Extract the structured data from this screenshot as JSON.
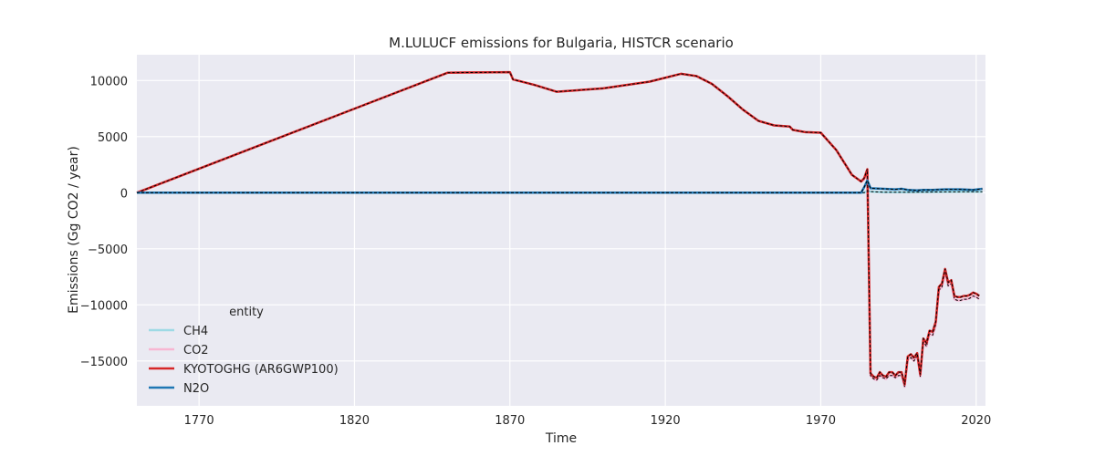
{
  "chart_data": {
    "type": "line",
    "title": "M.LULUCF emissions for Bulgaria, HISTCR scenario",
    "xlabel": "Time",
    "ylabel": "Emissions (Gg CO2 / year)",
    "xlim": [
      1750,
      2023
    ],
    "ylim": [
      -19000,
      12300
    ],
    "x_ticks": [
      1770,
      1820,
      1870,
      1920,
      1970,
      2020
    ],
    "y_ticks": [
      -15000,
      -10000,
      -5000,
      0,
      5000,
      10000
    ],
    "x_tick_labels": [
      "1770",
      "1820",
      "1870",
      "1920",
      "1970",
      "2020"
    ],
    "y_tick_labels": [
      "−15000",
      "−10000",
      "−5000",
      "0",
      "5000",
      "10000"
    ],
    "grid": true,
    "legend_placement": "lower-left",
    "legend_title": "entity",
    "background": "#eaeaf2",
    "series": [
      {
        "name": "CH4",
        "color": "#9edae5",
        "width": 2.5,
        "points": [
          [
            1750,
            0
          ],
          [
            1800,
            0
          ],
          [
            1850,
            0
          ],
          [
            1900,
            0
          ],
          [
            1950,
            0
          ],
          [
            1984,
            0
          ],
          [
            1985,
            150
          ],
          [
            1986,
            100
          ],
          [
            1990,
            50
          ],
          [
            1995,
            40
          ],
          [
            2000,
            50
          ],
          [
            2005,
            60
          ],
          [
            2010,
            70
          ],
          [
            2015,
            80
          ],
          [
            2022,
            90
          ]
        ]
      },
      {
        "name": "CO2",
        "color": "#f7b6d2",
        "width": 2.5,
        "points": [
          [
            1750,
            0
          ],
          [
            1850,
            10700
          ],
          [
            1870,
            10750
          ],
          [
            1871,
            10100
          ],
          [
            1878,
            9600
          ],
          [
            1885,
            9000
          ],
          [
            1900,
            9300
          ],
          [
            1915,
            9900
          ],
          [
            1925,
            10600
          ],
          [
            1930,
            10400
          ],
          [
            1935,
            9700
          ],
          [
            1940,
            8600
          ],
          [
            1945,
            7400
          ],
          [
            1950,
            6400
          ],
          [
            1955,
            6000
          ],
          [
            1960,
            5900
          ],
          [
            1961,
            5600
          ],
          [
            1965,
            5400
          ],
          [
            1970,
            5350
          ],
          [
            1975,
            3800
          ],
          [
            1980,
            1600
          ],
          [
            1983,
            1000
          ],
          [
            1984,
            1200
          ],
          [
            1985,
            2000
          ],
          [
            1986,
            -16300
          ],
          [
            1987,
            -16600
          ],
          [
            1988,
            -16700
          ],
          [
            1989,
            -16300
          ],
          [
            1990,
            -16500
          ],
          [
            1991,
            -16600
          ],
          [
            1992,
            -16300
          ],
          [
            1993,
            -16300
          ],
          [
            1994,
            -16500
          ],
          [
            1995,
            -16300
          ],
          [
            1996,
            -16300
          ],
          [
            1997,
            -17300
          ],
          [
            1998,
            -14900
          ],
          [
            1999,
            -14700
          ],
          [
            2000,
            -15000
          ],
          [
            2001,
            -14500
          ],
          [
            2002,
            -16400
          ],
          [
            2003,
            -13200
          ],
          [
            2004,
            -13700
          ],
          [
            2005,
            -12600
          ],
          [
            2006,
            -12700
          ],
          [
            2007,
            -11800
          ],
          [
            2008,
            -8700
          ],
          [
            2009,
            -8400
          ],
          [
            2010,
            -7100
          ],
          [
            2011,
            -8300
          ],
          [
            2012,
            -8100
          ],
          [
            2013,
            -9500
          ],
          [
            2014,
            -9600
          ],
          [
            2015,
            -9600
          ],
          [
            2016,
            -9500
          ],
          [
            2017,
            -9500
          ],
          [
            2018,
            -9400
          ],
          [
            2019,
            -9200
          ],
          [
            2020,
            -9300
          ],
          [
            2021,
            -9500
          ]
        ]
      },
      {
        "name": "KYOTOGHG (AR6GWP100)",
        "color": "#d62728",
        "width": 2.5,
        "points": [
          [
            1750,
            0
          ],
          [
            1850,
            10700
          ],
          [
            1870,
            10750
          ],
          [
            1871,
            10100
          ],
          [
            1878,
            9600
          ],
          [
            1885,
            9000
          ],
          [
            1900,
            9300
          ],
          [
            1915,
            9900
          ],
          [
            1925,
            10600
          ],
          [
            1930,
            10400
          ],
          [
            1935,
            9700
          ],
          [
            1940,
            8600
          ],
          [
            1945,
            7400
          ],
          [
            1950,
            6400
          ],
          [
            1955,
            6000
          ],
          [
            1960,
            5900
          ],
          [
            1961,
            5600
          ],
          [
            1965,
            5400
          ],
          [
            1970,
            5350
          ],
          [
            1975,
            3800
          ],
          [
            1980,
            1600
          ],
          [
            1983,
            1000
          ],
          [
            1984,
            1300
          ],
          [
            1985,
            2100
          ],
          [
            1986,
            -16100
          ],
          [
            1987,
            -16400
          ],
          [
            1988,
            -16500
          ],
          [
            1989,
            -16000
          ],
          [
            1990,
            -16300
          ],
          [
            1991,
            -16400
          ],
          [
            1992,
            -16000
          ],
          [
            1993,
            -16000
          ],
          [
            1994,
            -16300
          ],
          [
            1995,
            -16000
          ],
          [
            1996,
            -16000
          ],
          [
            1997,
            -17100
          ],
          [
            1998,
            -14600
          ],
          [
            1999,
            -14400
          ],
          [
            2000,
            -14700
          ],
          [
            2001,
            -14300
          ],
          [
            2002,
            -16200
          ],
          [
            2003,
            -13000
          ],
          [
            2004,
            -13400
          ],
          [
            2005,
            -12300
          ],
          [
            2006,
            -12400
          ],
          [
            2007,
            -11500
          ],
          [
            2008,
            -8400
          ],
          [
            2009,
            -8100
          ],
          [
            2010,
            -6800
          ],
          [
            2011,
            -8000
          ],
          [
            2012,
            -7800
          ],
          [
            2013,
            -9200
          ],
          [
            2014,
            -9300
          ],
          [
            2015,
            -9300
          ],
          [
            2016,
            -9200
          ],
          [
            2017,
            -9200
          ],
          [
            2018,
            -9100
          ],
          [
            2019,
            -8900
          ],
          [
            2020,
            -9000
          ],
          [
            2021,
            -9200
          ]
        ]
      },
      {
        "name": "N2O",
        "color": "#1f77b4",
        "width": 2.5,
        "points": [
          [
            1750,
            0
          ],
          [
            1800,
            0
          ],
          [
            1850,
            0
          ],
          [
            1900,
            0
          ],
          [
            1950,
            0
          ],
          [
            1983,
            0
          ],
          [
            1984,
            500
          ],
          [
            1985,
            1100
          ],
          [
            1986,
            400
          ],
          [
            1990,
            350
          ],
          [
            1994,
            300
          ],
          [
            1996,
            350
          ],
          [
            1998,
            250
          ],
          [
            2001,
            200
          ],
          [
            2003,
            250
          ],
          [
            2006,
            250
          ],
          [
            2010,
            300
          ],
          [
            2015,
            300
          ],
          [
            2019,
            250
          ],
          [
            2022,
            350
          ]
        ]
      }
    ]
  }
}
